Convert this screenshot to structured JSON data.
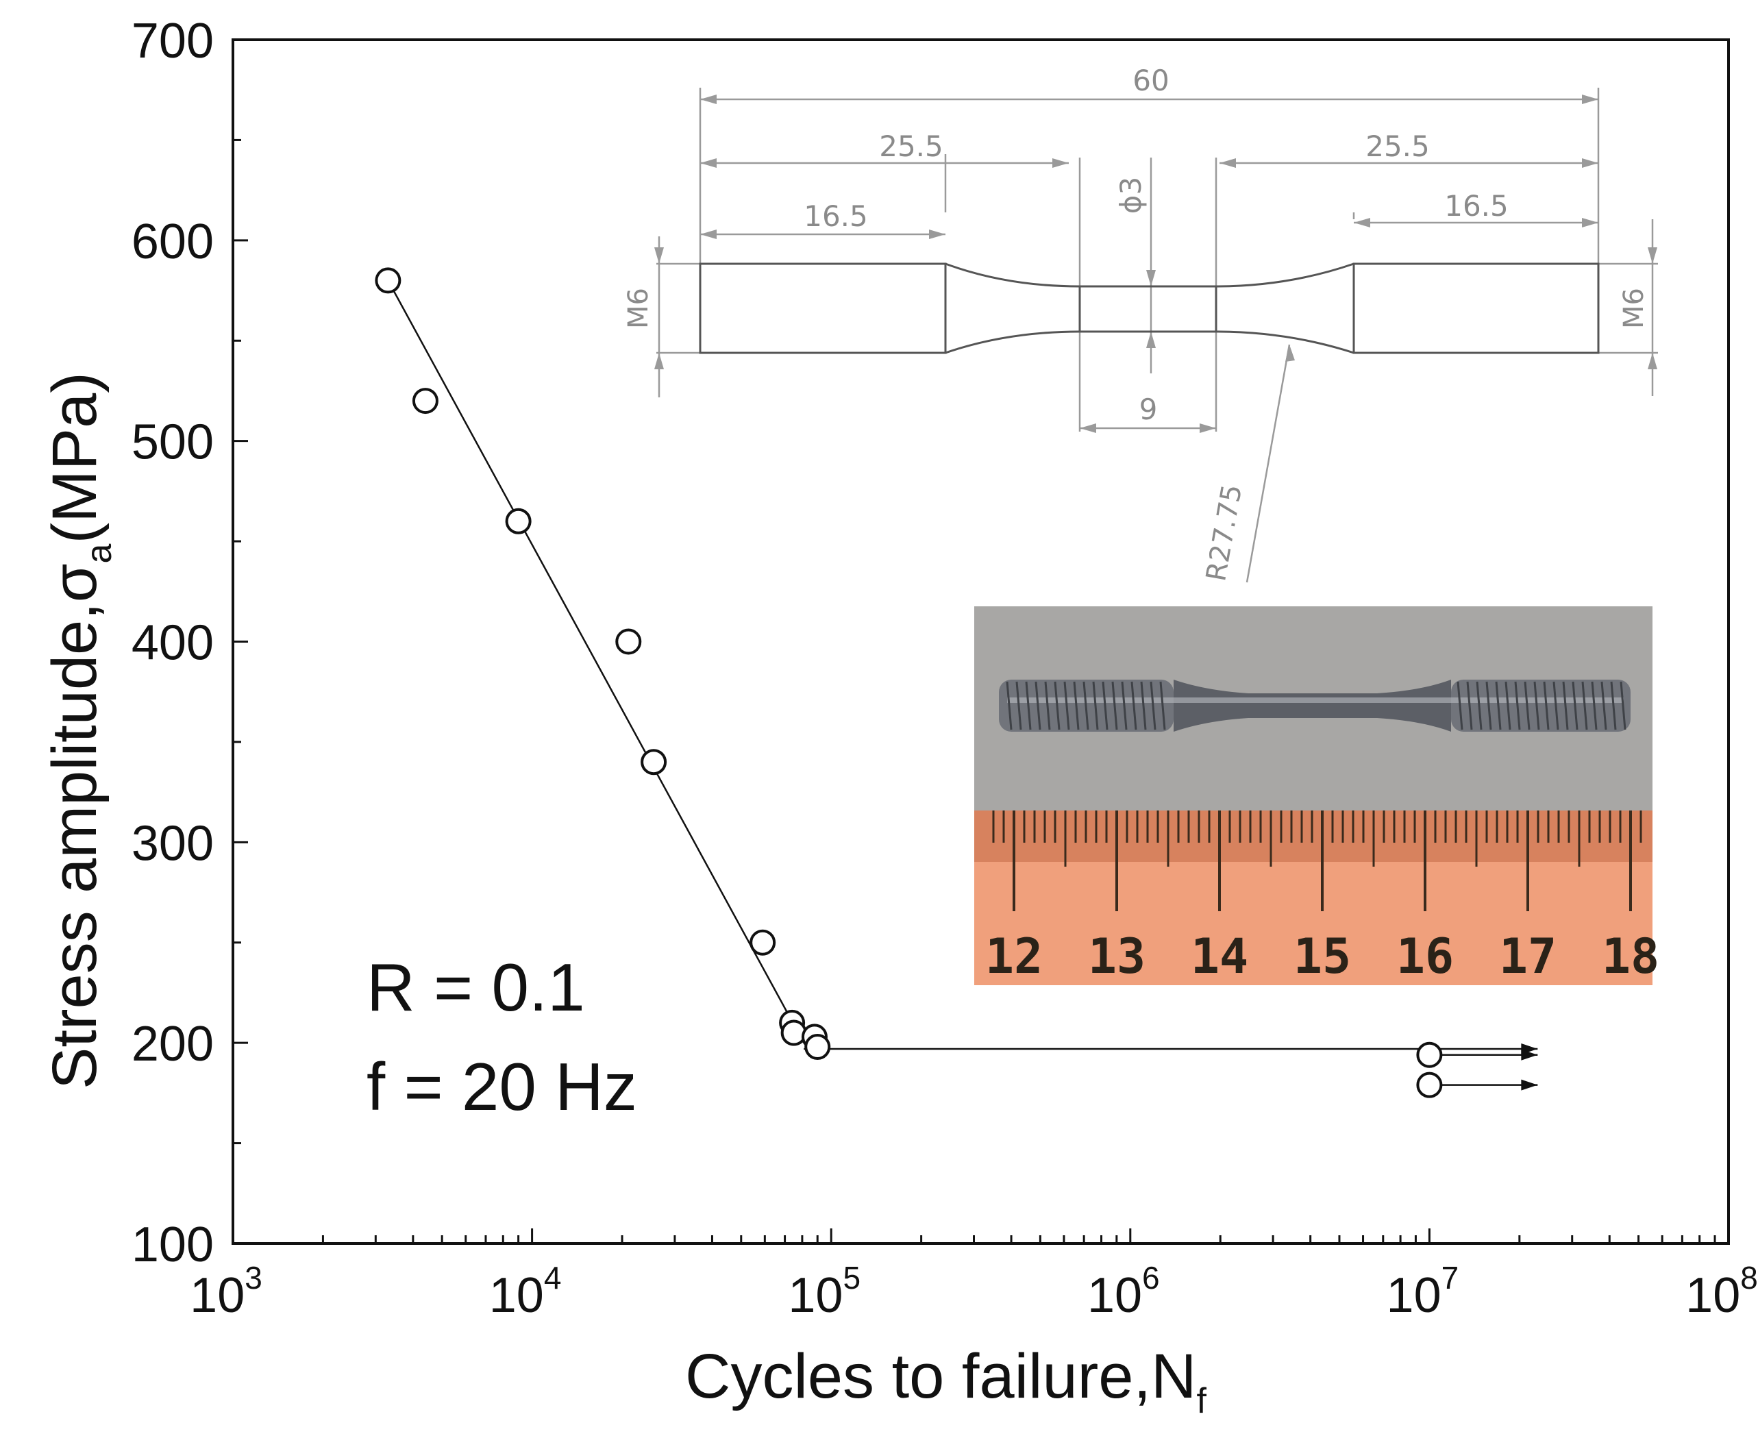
{
  "chart_data": {
    "type": "scatter",
    "x_scale": "log",
    "y_scale": "linear",
    "xlim": [
      1000,
      100000000
    ],
    "ylim": [
      100,
      700
    ],
    "xlabel": "Cycles to failure,N",
    "xlabel_sub": "f",
    "ylabel": "Stress amplitude,σ",
    "ylabel_sub": "a",
    "ylabel_unit": "(MPa)",
    "x_ticks": [
      {
        "base": "10",
        "exp": "3",
        "value": 1000
      },
      {
        "base": "10",
        "exp": "4",
        "value": 10000
      },
      {
        "base": "10",
        "exp": "5",
        "value": 100000
      },
      {
        "base": "10",
        "exp": "6",
        "value": 1000000
      },
      {
        "base": "10",
        "exp": "7",
        "value": 10000000
      },
      {
        "base": "10",
        "exp": "8",
        "value": 100000000
      }
    ],
    "y_ticks": [
      "100",
      "200",
      "300",
      "400",
      "500",
      "600",
      "700"
    ],
    "series": [
      {
        "marker": "open-circle",
        "points": [
          {
            "x": 3300,
            "y": 580
          },
          {
            "x": 4400,
            "y": 520
          },
          {
            "x": 9000,
            "y": 460
          },
          {
            "x": 21000,
            "y": 400
          },
          {
            "x": 25500,
            "y": 340
          },
          {
            "x": 59000,
            "y": 250
          },
          {
            "x": 74000,
            "y": 210
          },
          {
            "x": 75000,
            "y": 205
          },
          {
            "x": 88000,
            "y": 203
          },
          {
            "x": 90000,
            "y": 198
          },
          {
            "x": 10000000,
            "y": 194
          },
          {
            "x": 10000000,
            "y": 179
          }
        ]
      }
    ],
    "fit_line": {
      "points": [
        {
          "x": 3300,
          "y": 580
        },
        {
          "x": 81000,
          "y": 200
        }
      ]
    },
    "endurance_line": {
      "points": [
        {
          "x": 81000,
          "y": 197
        },
        {
          "x": 23000000,
          "y": 197
        }
      ]
    },
    "runout_arrows": [
      {
        "from_x": 10000000,
        "to_x": 23000000,
        "y": 194
      },
      {
        "from_x": 10000000,
        "to_x": 23000000,
        "y": 179
      }
    ],
    "annotations": [
      "R = 0.1",
      "f = 20 Hz"
    ],
    "grid": false,
    "legend": "none"
  },
  "specimen_drawing": {
    "dims": {
      "total_length": "60",
      "left_section": "25.5",
      "right_section": "25.5",
      "left_grip": "16.5",
      "right_grip": "16.5",
      "gauge_diameter": "ϕ3",
      "gauge_length": "9",
      "thread_left": "M6",
      "thread_right": "M6",
      "fillet_radius": "R27.75"
    }
  },
  "photo": {
    "ruler_labels": [
      "12",
      "13",
      "14",
      "15",
      "16",
      "17",
      "18"
    ],
    "colors": {
      "background": "#a8a7a5",
      "ruler": "#f0a07c",
      "ruler_dark": "#d7825e",
      "metal": "#6e7178"
    }
  }
}
